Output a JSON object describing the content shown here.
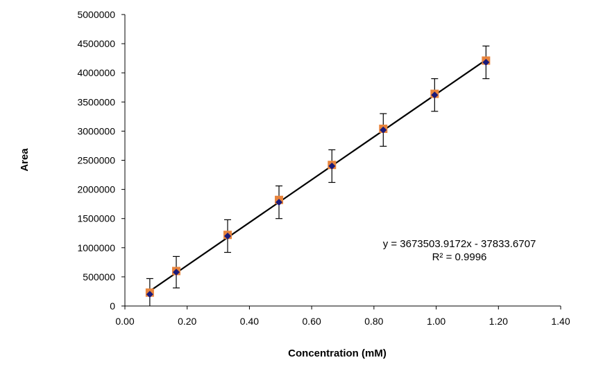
{
  "chart_data": {
    "type": "scatter",
    "title": "",
    "xlabel": "Concentration (mM)",
    "ylabel": "Area",
    "xlim": [
      0,
      1.4
    ],
    "ylim": [
      0,
      5000000
    ],
    "x_ticks": [
      "0.00",
      "0.20",
      "0.40",
      "0.60",
      "0.80",
      "1.00",
      "1.20",
      "1.40"
    ],
    "y_ticks": [
      "0",
      "500000",
      "1000000",
      "1500000",
      "2000000",
      "2500000",
      "3000000",
      "3500000",
      "4000000",
      "4500000",
      "5000000"
    ],
    "grid": false,
    "legend": "none",
    "series": [
      {
        "marker": "orange-square",
        "color": "#E8843C",
        "x": [
          0.08,
          0.165,
          0.33,
          0.495,
          0.665,
          0.83,
          0.995,
          1.16
        ],
        "y": [
          230000,
          600000,
          1220000,
          1820000,
          2420000,
          3040000,
          3640000,
          4210000
        ]
      },
      {
        "marker": "navy-diamond",
        "color": "#1A1A7A",
        "x": [
          0.08,
          0.165,
          0.33,
          0.495,
          0.665,
          0.83,
          0.995,
          1.16
        ],
        "y": [
          200000,
          580000,
          1200000,
          1780000,
          2400000,
          3020000,
          3620000,
          4180000
        ],
        "error_y": [
          270000,
          270000,
          280000,
          280000,
          280000,
          280000,
          280000,
          280000
        ]
      }
    ],
    "trendline": {
      "slope": 3673503.9172,
      "intercept": -37833.6707,
      "x_range": [
        0.07,
        1.17
      ],
      "color": "#000000"
    },
    "annotations": {
      "equation": "y = 3673503.9172x  - 37833.6707",
      "r_squared": "R² = 0.9996"
    }
  }
}
